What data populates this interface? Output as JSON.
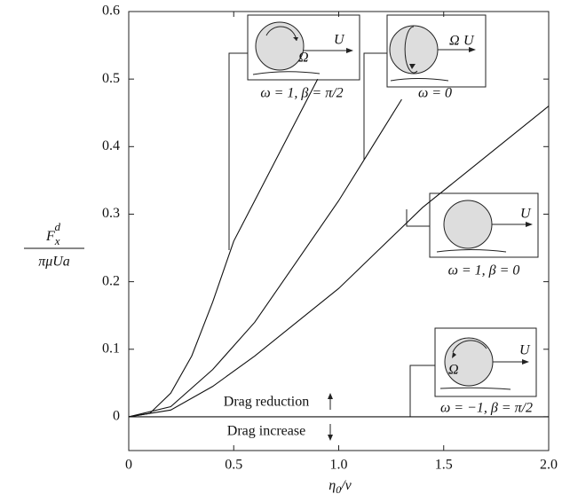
{
  "chart_data": {
    "type": "line",
    "ylabel": {
      "main": "F",
      "sub": "x",
      "sup": "d",
      "denominator": "πμUa"
    },
    "xlabel": {
      "main": "η",
      "sub": "0",
      "rest": "/ν"
    },
    "xlim": [
      0,
      2
    ],
    "ylim": [
      -0.05,
      0.6
    ],
    "xticks": [
      0,
      0.5,
      {
        "value": 1,
        "label": "1.0"
      },
      1.5,
      {
        "value": 2,
        "label": "2.0"
      }
    ],
    "yticks": [
      0,
      0.1,
      0.2,
      0.3,
      0.4,
      0.5,
      0.6
    ],
    "series": [
      {
        "name": "ω = 1, β = π/2",
        "color": "#111",
        "x": [
          0,
          0.1,
          0.2,
          0.3,
          0.4,
          0.5,
          0.6,
          0.7,
          0.8,
          0.9
        ],
        "values": [
          0,
          0.005,
          0.035,
          0.09,
          0.17,
          0.26,
          0.32,
          0.38,
          0.44,
          0.5
        ]
      },
      {
        "name": "ω = 0",
        "color": "#111",
        "x": [
          0,
          0.2,
          0.4,
          0.6,
          0.8,
          1.0,
          1.12,
          1.2,
          1.3
        ],
        "values": [
          0,
          0.015,
          0.07,
          0.14,
          0.23,
          0.32,
          0.38,
          0.42,
          0.47
        ]
      },
      {
        "name": "ω = 1, β = 0",
        "color": "#111",
        "x": [
          0,
          0.2,
          0.4,
          0.6,
          0.8,
          1.0,
          1.2,
          1.4,
          1.6,
          1.8,
          2.0
        ],
        "values": [
          0,
          0.01,
          0.045,
          0.09,
          0.14,
          0.19,
          0.25,
          0.31,
          0.36,
          0.41,
          0.46
        ]
      },
      {
        "name": "ω = −1, β = π/2",
        "color": "#111",
        "x": [
          0,
          2.0
        ],
        "values": [
          0,
          0
        ]
      }
    ],
    "annotations": {
      "reduction": "Drag reduction",
      "increase": "Drag increase",
      "velocity": "U",
      "rotation": "Ω"
    }
  }
}
